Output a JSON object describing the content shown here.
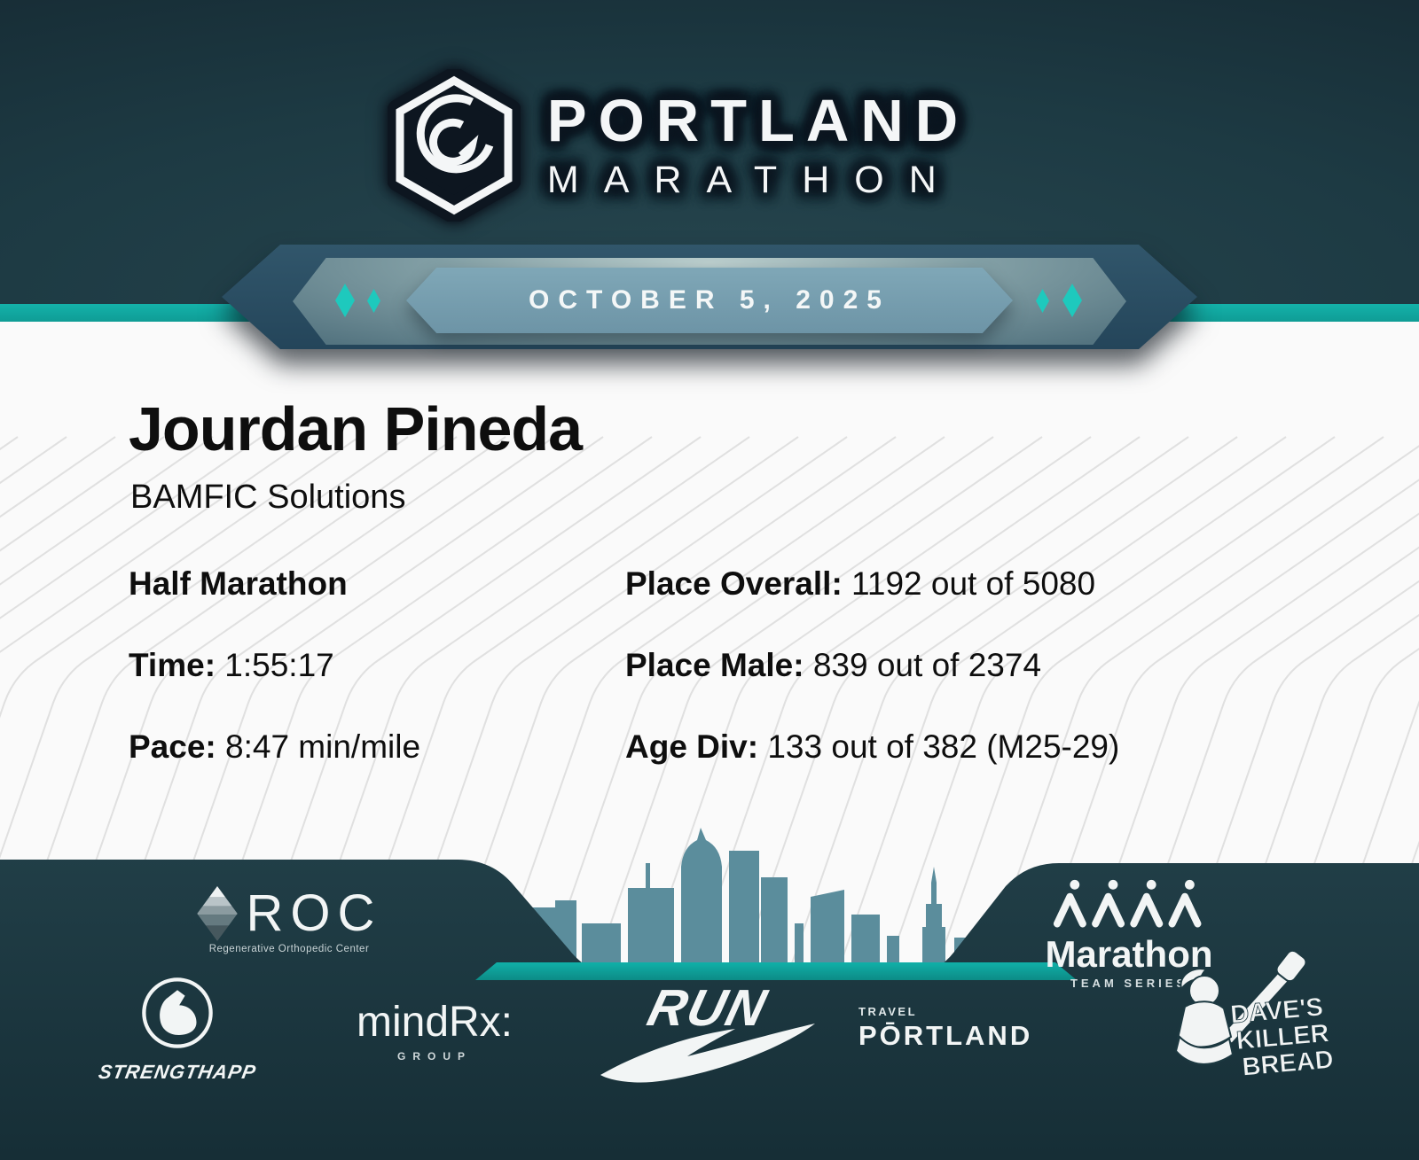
{
  "header": {
    "logo": {
      "line1": "PORTLAND",
      "line2": "MARATHON"
    },
    "date_banner": "OCTOBER 5, 2025"
  },
  "runner": {
    "name": "Jourdan Pineda",
    "team": "BAMFIC Solutions"
  },
  "results": {
    "race": "Half Marathon",
    "time_label": "Time:",
    "time_value": "1:55:17",
    "pace_label": "Pace:",
    "pace_value": "8:47 min/mile",
    "place_overall_label": "Place Overall:",
    "place_overall_value": "1192 out of 5080",
    "place_male_label": "Place Male:",
    "place_male_value": "839 out of 2374",
    "age_div_label": "Age Div:",
    "age_div_value": "133 out of 382 (M25-29)"
  },
  "sponsors": {
    "roc": {
      "name": "ROC",
      "caption": "Regenerative Orthopedic Center"
    },
    "strengthapp": {
      "name": "STRENGTHAPP"
    },
    "mindrx": {
      "name": "mindRx:",
      "sub": "GROUP"
    },
    "nike_run": {
      "name": "RUN"
    },
    "travel_portland": {
      "top": "TRAVEL",
      "name": "PŌRTLAND"
    },
    "marathon_team_series": {
      "name": "Marathon",
      "sub": "TEAM SERIES"
    },
    "daves_killer_bread": {
      "line1": "DAVE'S",
      "line2": "KILLER",
      "line3": "BREAD"
    }
  },
  "colors": {
    "accent_teal": "#12a8a1",
    "diamond_teal": "#1ec9bd",
    "banner_steel": "#2a4a5e",
    "badge_blue": "#7fa7b7",
    "skyline": "#5b8d9c",
    "footer_dark": "#1d3941",
    "header_dark": "#15282f",
    "text_dark": "#0e0e0e"
  }
}
